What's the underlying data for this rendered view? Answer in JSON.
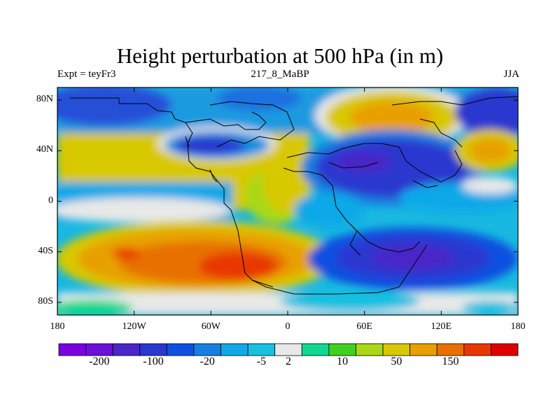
{
  "title": "Height perturbation at 500 hPa (in m)",
  "subtitle_left": "Expt = teyFr3",
  "subtitle_center": "217_8_MaBP",
  "subtitle_right": "JJA",
  "y_ticks": [
    "80N",
    "40N",
    "0",
    "40S",
    "80S"
  ],
  "x_ticks": [
    "180",
    "120W",
    "60W",
    "0",
    "60E",
    "120E",
    "180"
  ],
  "colorbar": {
    "colors": [
      "#7b00e0",
      "#6a10d8",
      "#4a28c8",
      "#2a38d0",
      "#1050e0",
      "#1580e0",
      "#10a8e8",
      "#18c0e0",
      "#e8e8e8",
      "#10d890",
      "#40d020",
      "#a8d818",
      "#d8c800",
      "#e8a000",
      "#e87000",
      "#e83800",
      "#e00000"
    ],
    "labels": [
      "-200",
      "-100",
      "-20",
      "-5",
      "2",
      "10",
      "50",
      "150"
    ]
  }
}
